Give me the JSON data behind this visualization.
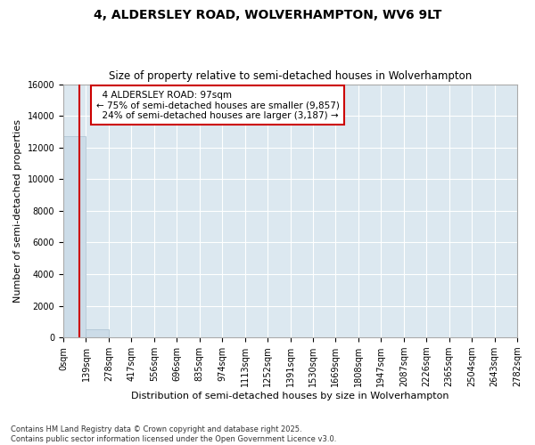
{
  "title": "4, ALDERSLEY ROAD, WOLVERHAMPTON, WV6 9LT",
  "subtitle": "Size of property relative to semi-detached houses in Wolverhampton",
  "xlabel": "Distribution of semi-detached houses by size in Wolverhampton",
  "ylabel": "Number of semi-detached properties",
  "property_size": 97,
  "property_label": "4 ALDERSLEY ROAD: 97sqm",
  "pct_smaller": 75,
  "pct_larger": 24,
  "count_smaller": 9857,
  "count_larger": 3187,
  "bar_color": "#ccdce8",
  "bar_edge_color": "#aac0d0",
  "vline_color": "#cc0000",
  "annotation_box_color": "#cc0000",
  "background_color": "#dce8f0",
  "grid_color": "#ffffff",
  "figure_background": "#ffffff",
  "bins": [
    0,
    139,
    278,
    417,
    556,
    696,
    835,
    974,
    1113,
    1252,
    1391,
    1530,
    1669,
    1808,
    1947,
    2087,
    2226,
    2365,
    2504,
    2643,
    2782
  ],
  "bin_labels": [
    "0sqm",
    "139sqm",
    "278sqm",
    "417sqm",
    "556sqm",
    "696sqm",
    "835sqm",
    "974sqm",
    "1113sqm",
    "1252sqm",
    "1391sqm",
    "1530sqm",
    "1669sqm",
    "1808sqm",
    "1947sqm",
    "2087sqm",
    "2226sqm",
    "2365sqm",
    "2504sqm",
    "2643sqm",
    "2782sqm"
  ],
  "bar_heights": [
    12700,
    520,
    5,
    2,
    1,
    0,
    0,
    0,
    0,
    0,
    0,
    0,
    0,
    0,
    0,
    0,
    0,
    0,
    0,
    0
  ],
  "ylim": [
    0,
    16000
  ],
  "yticks": [
    0,
    2000,
    4000,
    6000,
    8000,
    10000,
    12000,
    14000,
    16000
  ],
  "footnote": "Contains HM Land Registry data © Crown copyright and database right 2025.\nContains public sector information licensed under the Open Government Licence v3.0.",
  "title_fontsize": 10,
  "subtitle_fontsize": 8.5,
  "label_fontsize": 8,
  "tick_fontsize": 7,
  "footnote_fontsize": 6
}
